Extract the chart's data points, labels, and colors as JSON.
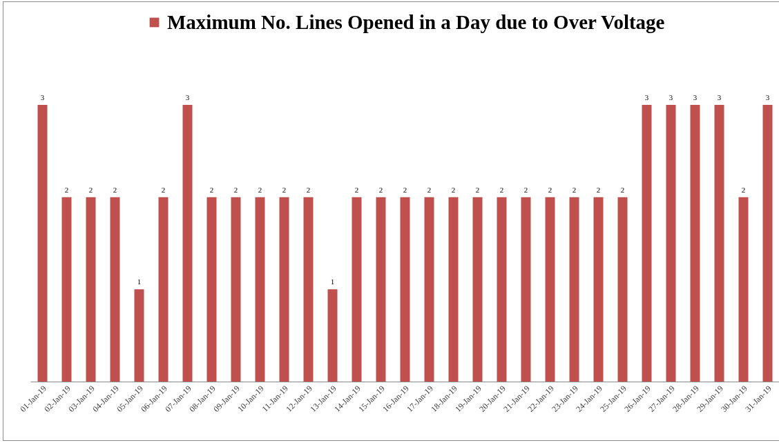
{
  "chart_data": {
    "type": "bar",
    "categories": [
      "01-Jan-19",
      "02-Jan-19",
      "03-Jan-19",
      "04-Jan-19",
      "05-Jan-19",
      "06-Jan-19",
      "07-Jan-19",
      "08-Jan-19",
      "09-Jan-19",
      "10-Jan-19",
      "11-Jan-19",
      "12-Jan-19",
      "13-Jan-19",
      "14-Jan-19",
      "15-Jan-19",
      "16-Jan-19",
      "17-Jan-19",
      "18-Jan-19",
      "19-Jan-19",
      "20-Jan-19",
      "21-Jan-19",
      "22-Jan-19",
      "23-Jan-19",
      "24-Jan-19",
      "25-Jan-19",
      "26-Jan-19",
      "27-Jan-19",
      "28-Jan-19",
      "29-Jan-19",
      "30-Jan-19",
      "31-Jan-19"
    ],
    "series": [
      {
        "name": "Maximum No. Lines Opened in a Day due to Over Voltage",
        "color": "#c0504d",
        "values": [
          3,
          2,
          2,
          2,
          1,
          2,
          3,
          2,
          2,
          2,
          2,
          2,
          1,
          2,
          2,
          2,
          2,
          2,
          2,
          2,
          2,
          2,
          2,
          2,
          2,
          3,
          3,
          3,
          3,
          2,
          3
        ]
      }
    ],
    "data_labels": true,
    "legend": "top",
    "tick_labels": "x"
  }
}
